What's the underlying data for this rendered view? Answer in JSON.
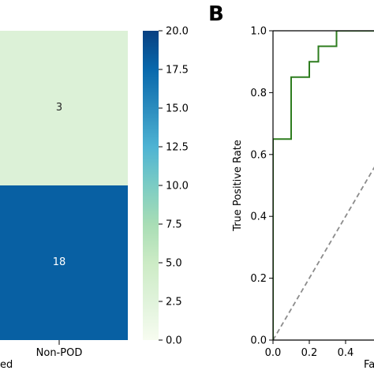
{
  "chart_data": [
    {
      "type": "heatmap",
      "x_tick_labels": [
        "Non-POD"
      ],
      "y_tick_labels_partial": [
        "ed"
      ],
      "cells": [
        {
          "row": 0,
          "col": 0,
          "value": 3,
          "label": "3"
        },
        {
          "row": 1,
          "col": 0,
          "value": 18,
          "label": "18"
        }
      ],
      "colorbar": {
        "range": [
          0.0,
          20.0
        ],
        "ticks": [
          "0.0",
          "2.5",
          "5.0",
          "7.5",
          "10.0",
          "12.5",
          "15.0",
          "17.5",
          "20.0"
        ],
        "colormap": "GnBu",
        "low_color": "#f7fcf0",
        "high_color": "#084081"
      }
    },
    {
      "type": "line",
      "panel_label": "B",
      "ylabel": "True Positive Rate",
      "xlabel_partial": "Fa",
      "xlim": [
        0.0,
        1.0
      ],
      "ylim": [
        0.0,
        1.0
      ],
      "x_ticks": [
        "0.0",
        "0.2",
        "0.4"
      ],
      "y_ticks": [
        "0.0",
        "0.2",
        "0.4",
        "0.6",
        "0.8",
        "1.0"
      ],
      "series": [
        {
          "style": "solid",
          "color": "#2e7d1f",
          "x": [
            0.0,
            0.0,
            0.1,
            0.1,
            0.2,
            0.2,
            0.25,
            0.25,
            0.35,
            0.35,
            0.45,
            0.45,
            0.6
          ],
          "y": [
            0.0,
            0.65,
            0.65,
            0.85,
            0.85,
            0.9,
            0.9,
            0.95,
            0.95,
            1.0,
            1.0,
            1.0,
            1.0
          ]
        },
        {
          "style": "dashed",
          "color": "#8c8c8c",
          "x": [
            0.0,
            1.0
          ],
          "y": [
            0.0,
            1.0
          ]
        }
      ]
    }
  ]
}
